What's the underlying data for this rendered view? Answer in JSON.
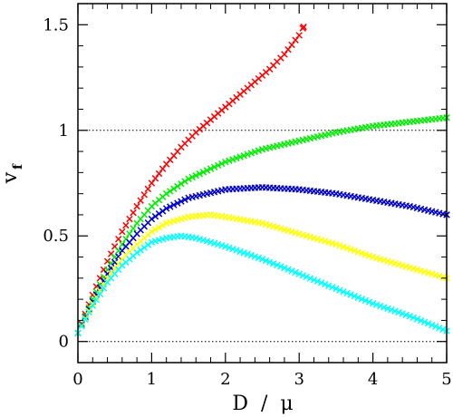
{
  "chart_data": {
    "type": "scatter",
    "xlabel": "D  /  μ",
    "ylabel": "v",
    "ylabel_subscript": "f",
    "xlim": [
      0,
      5
    ],
    "ylim": [
      -0.1,
      1.6
    ],
    "xticks": [
      0,
      1,
      2,
      3,
      4,
      5
    ],
    "xtick_labels": [
      "0",
      "1",
      "2",
      "3",
      "4",
      "5"
    ],
    "yticks": [
      0,
      0.5,
      1,
      1.5
    ],
    "ytick_labels": [
      "0",
      "0.5",
      "1",
      "1.5"
    ],
    "reference_lines": [
      0,
      1
    ],
    "grid": false,
    "marker": "x",
    "series": [
      {
        "color": "#ff0000",
        "x": [
          0,
          0.1,
          0.2,
          0.3,
          0.4,
          0.5,
          0.6,
          0.8,
          1.0,
          1.2,
          1.4,
          1.6,
          1.8,
          2.0,
          2.2,
          2.4,
          2.6,
          2.8,
          3.0,
          3.06
        ],
        "y": [
          0.04,
          0.13,
          0.22,
          0.3,
          0.38,
          0.45,
          0.52,
          0.64,
          0.75,
          0.84,
          0.92,
          0.99,
          1.05,
          1.11,
          1.17,
          1.23,
          1.29,
          1.36,
          1.45,
          1.49
        ]
      },
      {
        "color": "#00ee00",
        "x": [
          0,
          0.2,
          0.4,
          0.6,
          0.8,
          1.0,
          1.2,
          1.5,
          2.0,
          2.5,
          3.0,
          3.5,
          4.0,
          4.5,
          5.0
        ],
        "y": [
          0.04,
          0.2,
          0.34,
          0.46,
          0.56,
          0.64,
          0.7,
          0.77,
          0.85,
          0.91,
          0.95,
          0.99,
          1.02,
          1.04,
          1.06
        ]
      },
      {
        "color": "#0000cc",
        "x": [
          0,
          0.2,
          0.4,
          0.6,
          0.8,
          1.0,
          1.2,
          1.5,
          2.0,
          2.5,
          3.0,
          3.5,
          4.0,
          4.5,
          5.0
        ],
        "y": [
          0.04,
          0.19,
          0.32,
          0.43,
          0.51,
          0.58,
          0.63,
          0.68,
          0.72,
          0.73,
          0.72,
          0.7,
          0.67,
          0.64,
          0.6
        ]
      },
      {
        "color": "#ffff00",
        "x": [
          0,
          0.2,
          0.4,
          0.6,
          0.8,
          1.0,
          1.2,
          1.5,
          1.8,
          2.0,
          2.5,
          3.0,
          3.5,
          4.0,
          4.5,
          5.0
        ],
        "y": [
          0.04,
          0.18,
          0.3,
          0.39,
          0.46,
          0.52,
          0.56,
          0.59,
          0.6,
          0.59,
          0.56,
          0.51,
          0.46,
          0.4,
          0.35,
          0.3
        ]
      },
      {
        "color": "#00ffff",
        "x": [
          0,
          0.2,
          0.4,
          0.6,
          0.8,
          1.0,
          1.2,
          1.4,
          1.6,
          2.0,
          2.5,
          3.0,
          3.5,
          4.0,
          4.5,
          5.0
        ],
        "y": [
          0.04,
          0.17,
          0.28,
          0.36,
          0.42,
          0.47,
          0.49,
          0.5,
          0.49,
          0.45,
          0.39,
          0.32,
          0.25,
          0.18,
          0.12,
          0.05
        ]
      }
    ]
  }
}
